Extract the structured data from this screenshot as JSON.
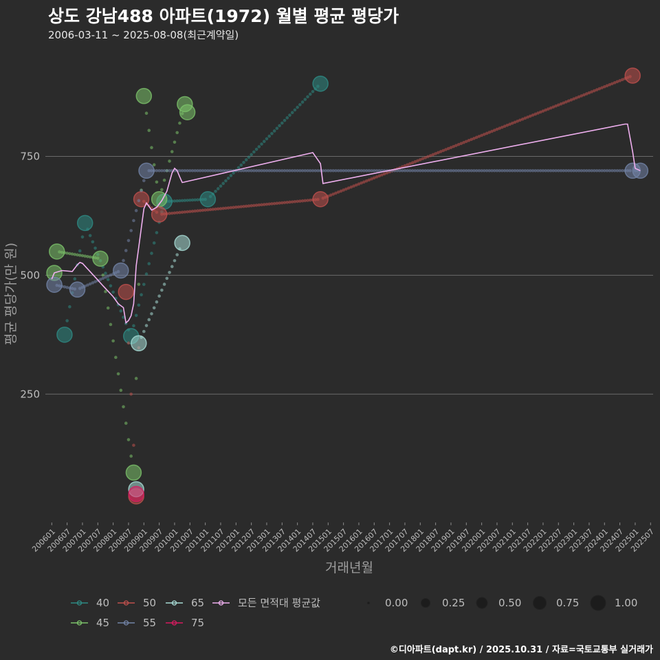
{
  "header": {
    "title": "상도 강남488 아파트(1972) 월별 평균 평당가",
    "subtitle": "2006-03-11 ~ 2025-08-08(최근계약일)"
  },
  "footer": {
    "credit": "©디아파트(dapt.kr) / 2025.10.31 / 자료=국토교통부 실거래가"
  },
  "colors": {
    "background": "#2b2b2b",
    "grid": "#6b6b6b",
    "s40": "#2e8b84",
    "s45": "#7cc26a",
    "s50": "#c0504d",
    "s55": "#7384a8",
    "s65": "#a8dcd6",
    "s75": "#d81b60",
    "avg": "#f0b0f0"
  },
  "chart_data": {
    "type": "line",
    "title": "상도 강남488 아파트(1972) 월별 평균 평당가",
    "xlabel": "거래년월",
    "ylabel": "평균 평당가(만 원)",
    "ylim": [
      -20,
      985
    ],
    "yticks": [
      250,
      500,
      750
    ],
    "xlim": [
      -2.5,
      235
    ],
    "xtick_labels": [
      "200601",
      "200607",
      "200701",
      "200707",
      "200801",
      "200807",
      "200901",
      "200907",
      "201001",
      "201007",
      "201101",
      "201107",
      "201201",
      "201207",
      "201301",
      "201307",
      "201401",
      "201407",
      "201501",
      "201507",
      "201601",
      "201607",
      "201701",
      "201707",
      "201801",
      "201807",
      "201901",
      "201907",
      "202001",
      "202007",
      "202101",
      "202107",
      "202201",
      "202207",
      "202301",
      "202307",
      "202401",
      "202407",
      "202501",
      "202507"
    ],
    "x_unit": "months since 2006-01",
    "series": [
      {
        "name": "40",
        "color_key": "s40",
        "points": [
          [
            5,
            375
          ],
          [
            13,
            610
          ],
          [
            31,
            372
          ],
          [
            44,
            655
          ],
          [
            61,
            660
          ],
          [
            105,
            903
          ]
        ]
      },
      {
        "name": "45",
        "color_key": "s45",
        "points": [
          [
            1,
            505
          ],
          [
            2,
            550
          ],
          [
            19,
            535
          ],
          [
            32,
            85
          ],
          [
            36,
            877
          ],
          [
            42,
            660
          ],
          [
            52,
            860
          ],
          [
            53,
            843
          ]
        ]
      },
      {
        "name": "50",
        "color_key": "s50",
        "points": [
          [
            29,
            465
          ],
          [
            33,
            35
          ],
          [
            35,
            660
          ],
          [
            42,
            628
          ],
          [
            105,
            660
          ],
          [
            227,
            920
          ]
        ]
      },
      {
        "name": "55",
        "color_key": "s55",
        "points": [
          [
            1,
            480
          ],
          [
            10,
            470
          ],
          [
            27,
            510
          ],
          [
            37,
            720
          ],
          [
            227,
            720
          ],
          [
            230,
            720
          ]
        ]
      },
      {
        "name": "65",
        "color_key": "s65",
        "points": [
          [
            33,
            50
          ],
          [
            34,
            357
          ],
          [
            51,
            568
          ]
        ]
      },
      {
        "name": "75",
        "color_key": "s75",
        "points": [
          [
            33,
            40
          ]
        ]
      },
      {
        "name": "모든 면적대 평균값",
        "color_key": "avg",
        "points": [
          [
            0,
            492
          ],
          [
            1,
            505
          ],
          [
            4,
            510
          ],
          [
            8,
            508
          ],
          [
            10,
            522
          ],
          [
            11,
            527
          ],
          [
            12,
            525
          ],
          [
            18,
            490
          ],
          [
            20,
            478
          ],
          [
            24,
            455
          ],
          [
            26,
            440
          ],
          [
            28,
            432
          ],
          [
            29,
            400
          ],
          [
            30,
            405
          ],
          [
            31,
            415
          ],
          [
            32,
            440
          ],
          [
            33,
            520
          ],
          [
            34,
            560
          ],
          [
            35,
            600
          ],
          [
            36,
            640
          ],
          [
            37,
            652
          ],
          [
            38,
            645
          ],
          [
            39,
            637
          ],
          [
            41,
            643
          ],
          [
            43,
            657
          ],
          [
            45,
            677
          ],
          [
            47,
            715
          ],
          [
            48,
            725
          ],
          [
            49,
            720
          ],
          [
            50,
            707
          ],
          [
            51,
            695
          ],
          [
            102,
            758
          ],
          [
            105,
            735
          ],
          [
            106,
            693
          ],
          [
            224,
            818
          ],
          [
            225,
            818
          ],
          [
            227,
            760
          ],
          [
            228,
            725
          ],
          [
            230,
            720
          ]
        ]
      }
    ],
    "legend": {
      "series_labels": [
        "40",
        "50",
        "65",
        "모든 면적대 평균값",
        "45",
        "55",
        "75"
      ],
      "size_labels": [
        "0.00",
        "0.25",
        "0.50",
        "0.75",
        "1.00"
      ]
    }
  }
}
